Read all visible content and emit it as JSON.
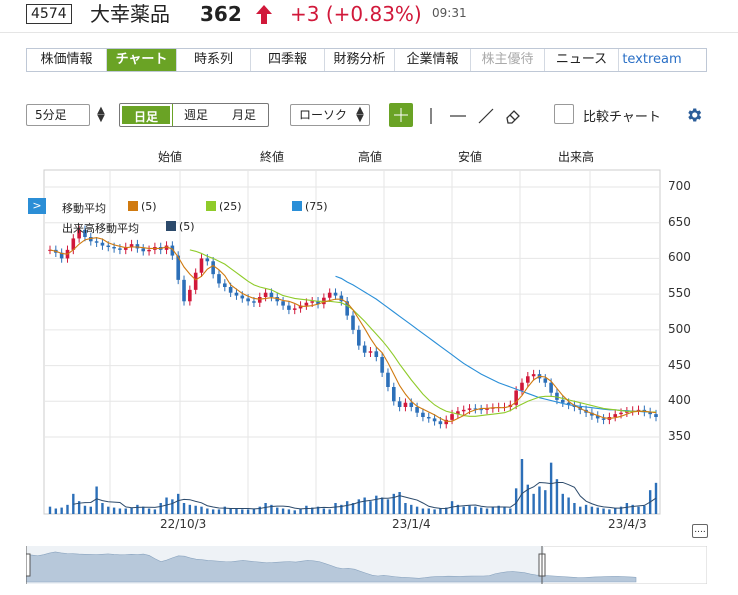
{
  "header": {
    "code": "4574",
    "name": "大幸薬品",
    "price": "362",
    "change": "+3 (+0.83%)",
    "time": "09:31"
  },
  "tabs": [
    {
      "label": "株価情報",
      "state": "normal"
    },
    {
      "label": "チャート",
      "state": "active"
    },
    {
      "label": "時系列",
      "state": "normal"
    },
    {
      "label": "四季報",
      "state": "normal"
    },
    {
      "label": "財務分析",
      "state": "normal"
    },
    {
      "label": "企業情報",
      "state": "normal"
    },
    {
      "label": "株主優待",
      "state": "disabled"
    },
    {
      "label": "ニュース",
      "state": "normal"
    },
    {
      "label": "textream",
      "state": "link"
    }
  ],
  "toolbar": {
    "interval": "5分足",
    "range_day": "日足",
    "range_week": "週足",
    "range_month": "月足",
    "chart_type": "ローソク",
    "compare_label": "比較チャート"
  },
  "chart": {
    "fields": [
      "始値",
      "終値",
      "高値",
      "安値",
      "出来高"
    ],
    "legend": {
      "ma_label": "移動平均",
      "ma": [
        {
          "period": "(5)",
          "color": "#d07a10"
        },
        {
          "period": "(25)",
          "color": "#8fcb2a"
        },
        {
          "period": "(75)",
          "color": "#2a8fd8"
        }
      ],
      "vol_ma_label": "出来高移動平均",
      "vol_ma": {
        "period": "(5)",
        "color": "#2c4a6b"
      }
    },
    "colors": {
      "up": "#d1183a",
      "down": "#2c6fb8",
      "grid": "#e6e6e6"
    }
  },
  "chart_data": {
    "type": "candlestick",
    "y_ticks": [
      "700",
      "650",
      "600",
      "550",
      "500",
      "450",
      "400",
      "350"
    ],
    "ylim": [
      350,
      700
    ],
    "x_labels": [
      "22/10/3",
      "23/1/4",
      "23/4/3"
    ],
    "close_series": [
      612,
      608,
      600,
      612,
      628,
      640,
      630,
      624,
      622,
      618,
      616,
      614,
      612,
      616,
      620,
      614,
      610,
      612,
      616,
      612,
      618,
      604,
      570,
      540,
      556,
      580,
      600,
      596,
      578,
      565,
      560,
      552,
      548,
      544,
      540,
      538,
      546,
      552,
      546,
      540,
      534,
      528,
      530,
      534,
      538,
      540,
      536,
      545,
      552,
      548,
      540,
      520,
      500,
      478,
      468,
      470,
      462,
      440,
      420,
      400,
      392,
      398,
      392,
      384,
      378,
      376,
      372,
      368,
      374,
      382,
      386,
      388,
      390,
      389,
      388,
      390,
      391,
      392,
      392,
      395,
      415,
      426,
      435,
      438,
      432,
      426,
      412,
      402,
      398,
      395,
      392,
      388,
      384,
      380,
      376,
      374,
      378,
      382,
      384,
      386,
      387,
      388,
      385,
      382,
      378
    ],
    "ma5": [
      612,
      610,
      607,
      606,
      612,
      620,
      626,
      628,
      629,
      627,
      622,
      619,
      617,
      615,
      616,
      616,
      615,
      614,
      614,
      614,
      616,
      613,
      602,
      588,
      578,
      570,
      575,
      585,
      590,
      584,
      576,
      563,
      557,
      551,
      547,
      544,
      543,
      544,
      545,
      544,
      541,
      540,
      537,
      533,
      533,
      534,
      536,
      539,
      541,
      543,
      543,
      538,
      528,
      515,
      502,
      488,
      476,
      468,
      454,
      438,
      422,
      410,
      400,
      393,
      389,
      385,
      381,
      376,
      372,
      372,
      376,
      380,
      385,
      388,
      390,
      390,
      391,
      391,
      391,
      393,
      399,
      408,
      420,
      430,
      435,
      434,
      428,
      418,
      408,
      400,
      394,
      390,
      386,
      383,
      380,
      377,
      376,
      377,
      379,
      382,
      385,
      386,
      386,
      385,
      384
    ],
    "ma25": [
      null,
      null,
      null,
      null,
      null,
      null,
      null,
      null,
      null,
      null,
      null,
      null,
      null,
      null,
      null,
      null,
      null,
      null,
      null,
      null,
      null,
      null,
      null,
      null,
      612,
      610,
      607,
      603,
      600,
      596,
      592,
      586,
      580,
      574,
      568,
      563,
      560,
      558,
      556,
      552,
      548,
      546,
      544,
      543,
      542,
      541,
      540,
      540,
      540,
      539,
      538,
      534,
      528,
      520,
      512,
      503,
      494,
      485,
      475,
      464,
      452,
      441,
      430,
      420,
      410,
      402,
      395,
      390,
      386,
      384,
      382,
      380,
      379,
      379,
      380,
      381,
      382,
      383,
      384,
      387,
      392,
      396,
      400,
      403,
      406,
      407,
      407,
      406,
      404,
      402,
      400,
      398,
      396,
      394,
      392,
      390,
      389,
      388,
      387,
      386,
      386,
      386,
      386,
      385,
      385
    ],
    "ma75": [
      null,
      null,
      null,
      null,
      null,
      null,
      null,
      null,
      null,
      null,
      null,
      null,
      null,
      null,
      null,
      null,
      null,
      null,
      null,
      null,
      null,
      null,
      null,
      null,
      null,
      null,
      null,
      null,
      null,
      null,
      null,
      null,
      null,
      null,
      null,
      null,
      null,
      null,
      null,
      null,
      null,
      null,
      null,
      null,
      null,
      null,
      null,
      null,
      null,
      575,
      572,
      567,
      563,
      558,
      553,
      548,
      543,
      537,
      531,
      525,
      519,
      513,
      507,
      501,
      495,
      489,
      483,
      477,
      471,
      465,
      459,
      453,
      448,
      443,
      438,
      434,
      430,
      426,
      423,
      420,
      417,
      414,
      411,
      408,
      405,
      403,
      401,
      399,
      397,
      395,
      394,
      393,
      392,
      391,
      390,
      389,
      388,
      388,
      387,
      387,
      386,
      386,
      385,
      385,
      385
    ],
    "volume": [
      8,
      6,
      7,
      10,
      22,
      14,
      9,
      8,
      30,
      12,
      8,
      7,
      6,
      6,
      7,
      10,
      8,
      6,
      5,
      12,
      18,
      16,
      22,
      12,
      10,
      9,
      8,
      6,
      5,
      5,
      8,
      6,
      6,
      5,
      5,
      6,
      8,
      12,
      10,
      7,
      6,
      5,
      4,
      6,
      9,
      7,
      8,
      6,
      5,
      12,
      10,
      14,
      12,
      16,
      18,
      14,
      20,
      18,
      16,
      22,
      24,
      12,
      10,
      8,
      6,
      6,
      5,
      6,
      7,
      14,
      10,
      8,
      9,
      8,
      7,
      6,
      8,
      9,
      8,
      6,
      28,
      60,
      32,
      22,
      30,
      26,
      56,
      38,
      22,
      18,
      12,
      8,
      10,
      8,
      7,
      6,
      5,
      6,
      8,
      12,
      10,
      8,
      9,
      26,
      34
    ]
  },
  "navigator": {
    "handle_left": "||",
    "handle_right": "||"
  }
}
